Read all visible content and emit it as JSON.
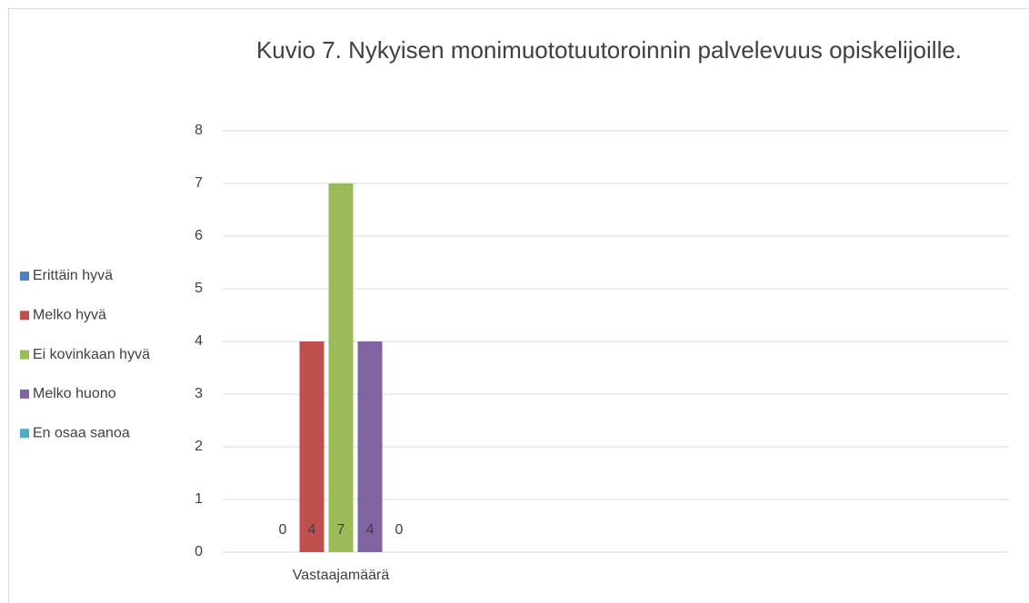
{
  "chart_data": {
    "type": "bar",
    "title": "Kuvio 7. Nykyisen monimuototuutoroinnin palvelevuus opiskelijoille.",
    "categories": [
      "Vastaajamäärä"
    ],
    "series": [
      {
        "name": "Erittäin hyvä",
        "color": "#4f81bd",
        "values": [
          0
        ]
      },
      {
        "name": "Melko hyvä",
        "color": "#c0504d",
        "values": [
          4
        ]
      },
      {
        "name": "Ei kovinkaan hyvä",
        "color": "#9bbb59",
        "values": [
          7
        ]
      },
      {
        "name": "Melko huono",
        "color": "#8064a2",
        "values": [
          4
        ]
      },
      {
        "name": "En osaa sanoa",
        "color": "#4bacc6",
        "values": [
          0
        ]
      }
    ],
    "ylim": [
      0,
      8
    ],
    "yticks": [
      0,
      1,
      2,
      3,
      4,
      5,
      6,
      7,
      8
    ],
    "grid": true,
    "legend": "left"
  }
}
